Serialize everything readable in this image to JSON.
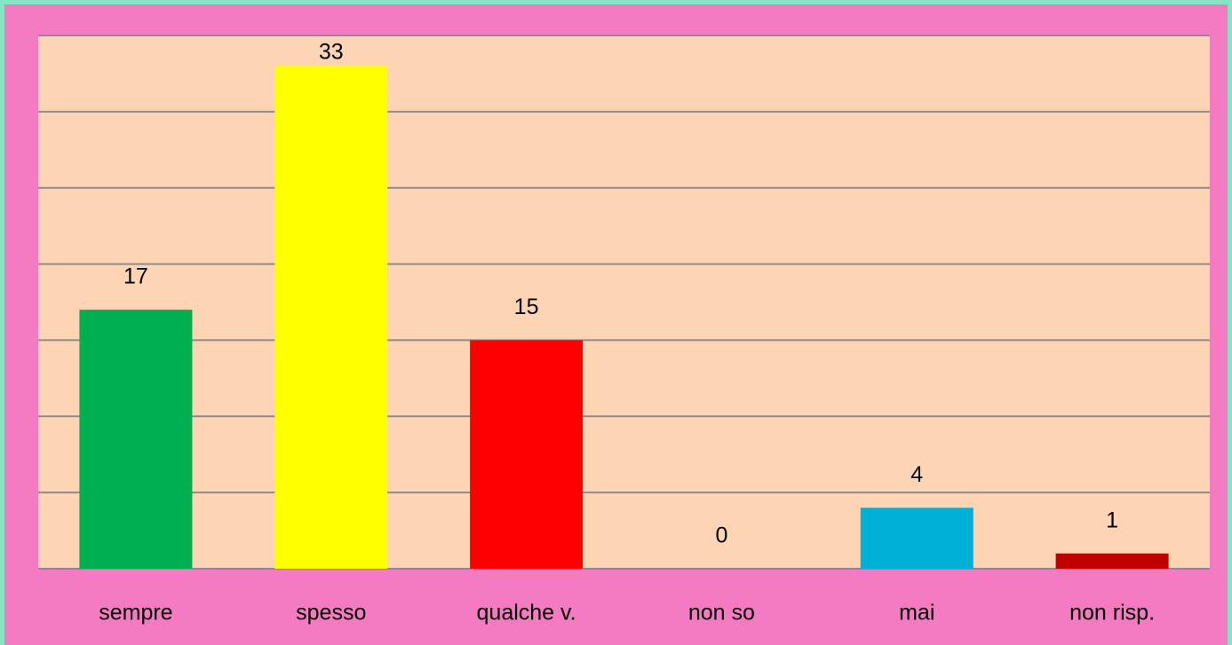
{
  "chart_data": {
    "type": "bar",
    "categories": [
      "sempre",
      "spesso",
      "qualche v.",
      "non so",
      "mai",
      "non risp."
    ],
    "values": [
      17,
      33,
      15,
      0,
      4,
      1
    ],
    "colors": [
      "#00b050",
      "#ffff00",
      "#ff0000",
      "#7f7f7f",
      "#00b0d6",
      "#c00000"
    ],
    "ylim": [
      0,
      35
    ],
    "yticks": [
      0,
      5,
      10,
      15,
      20,
      25,
      30,
      35
    ],
    "grid": true
  }
}
